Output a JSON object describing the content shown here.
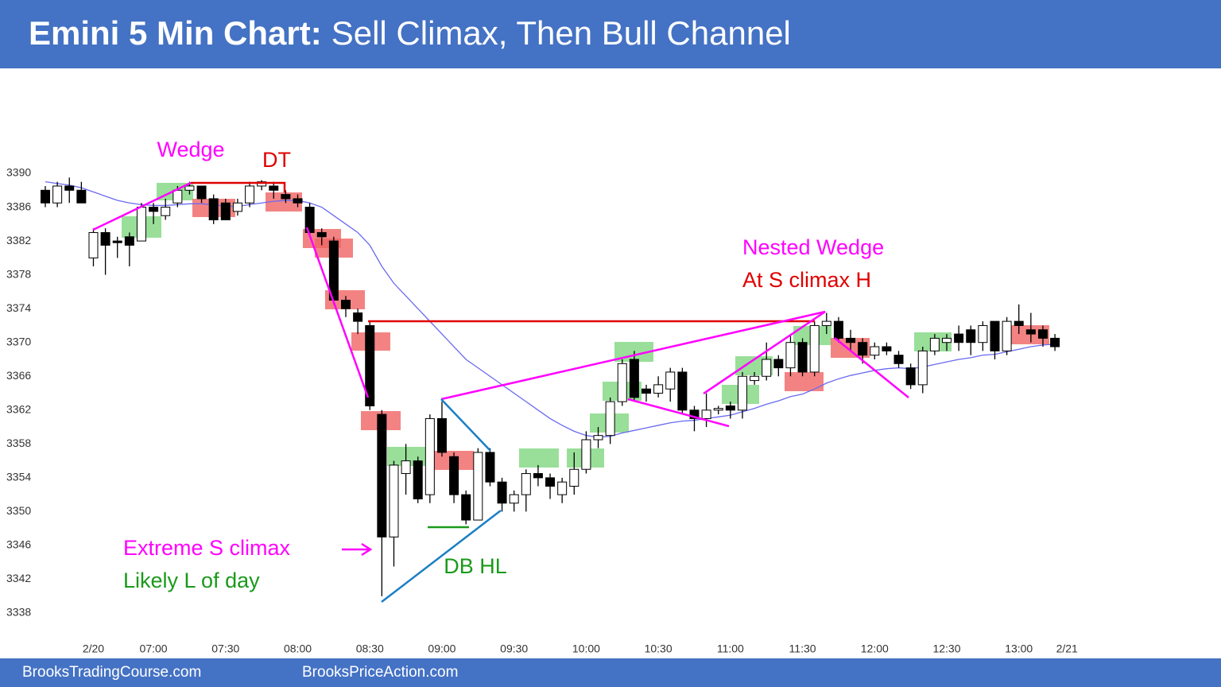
{
  "chart_data": {
    "type": "candlestick",
    "title": {
      "lead": "Emini 5 Min Chart:",
      "text": "Sell Climax, Then Bull Channel"
    },
    "categories": [
      null,
      null,
      null,
      null,
      "2/20",
      null,
      null,
      null,
      null,
      "07:00",
      null,
      null,
      null,
      null,
      null,
      "07:30",
      null,
      null,
      null,
      null,
      null,
      "08:00",
      null,
      null,
      null,
      null,
      null,
      "08:30",
      null,
      null,
      null,
      null,
      null,
      "09:00",
      null,
      null,
      null,
      null,
      null,
      "09:30",
      null,
      null,
      null,
      null,
      null,
      "10:00",
      null,
      null,
      null,
      null,
      null,
      "10:30",
      null,
      null,
      null,
      null,
      null,
      "11:00",
      null,
      null,
      null,
      null,
      null,
      "11:30",
      null,
      null,
      null,
      null,
      null,
      "12:00",
      null,
      null,
      null,
      null,
      null,
      "12:30",
      null,
      null,
      null,
      null,
      null,
      "13:00",
      null,
      null,
      null,
      "2/21"
    ],
    "open": [
      3388,
      3386.5,
      3388.5,
      3388,
      3380,
      3383,
      3382,
      3382.5,
      3382,
      3386,
      3385,
      3386.5,
      3388,
      3388.5,
      3387,
      3386.5,
      3385.5,
      3386.5,
      3388.5,
      3388.5,
      3387.5,
      3387,
      3386,
      3383,
      3382,
      3375,
      3373.5,
      3372,
      3361.5,
      3347,
      3354.5,
      3356,
      3352,
      3361,
      3356.5,
      3352,
      3349,
      3357,
      3353.5,
      3351,
      3352,
      3354.5,
      3354,
      3352,
      3353,
      3355,
      3358.5,
      3359,
      3363,
      3368,
      3364.5,
      3364,
      3364.5,
      3366.5,
      3362,
      3361,
      3362,
      3362.5,
      3362,
      3365.5,
      3366,
      3368,
      3367,
      3370,
      3366.5,
      3372,
      3372.5,
      3370.5,
      3370,
      3368.5,
      3369.5,
      3368.5,
      3367,
      3365,
      3369,
      3370,
      3371,
      3371.5,
      3370,
      3372.5,
      3369,
      3372.5,
      3371.5,
      3371.5,
      3370.5,
      null
    ],
    "high": [
      3388.5,
      3389,
      3389.5,
      3389,
      3383.5,
      3383.5,
      3382.5,
      3383,
      3386.5,
      3386.5,
      3387,
      3388.5,
      3389,
      3388.5,
      3387.5,
      3387,
      3387,
      3389,
      3389.2,
      3389,
      3388,
      3387.5,
      3386.5,
      3383.5,
      3382.5,
      3375.5,
      3374,
      3372.5,
      3362,
      3356,
      3358,
      3356.5,
      3361.5,
      3363,
      3357,
      3352.5,
      3357.5,
      3357.5,
      3354,
      3352.5,
      3355,
      3355.5,
      3354.5,
      3354,
      3357,
      3359.5,
      3360,
      3363.5,
      3368,
      3369,
      3365,
      3366,
      3367,
      3367,
      3362.5,
      3364,
      3362.5,
      3363,
      3366.5,
      3366.5,
      3370,
      3368.5,
      3371,
      3370.5,
      3372.5,
      3373.5,
      3373,
      3371.5,
      3370.5,
      3370,
      3370,
      3369,
      3367.5,
      3369.5,
      3371,
      3371,
      3372,
      3372,
      3372.5,
      3372.5,
      3373,
      3374.5,
      3373.5,
      3372,
      3371,
      null
    ],
    "low": [
      3386,
      3386,
      3386.5,
      3386.5,
      3379,
      3378,
      3380,
      3379,
      3382,
      3384,
      3384.5,
      3386,
      3387.5,
      3386.5,
      3384,
      3384.5,
      3385,
      3386,
      3388,
      3387,
      3386.5,
      3386,
      3382.5,
      3381.5,
      3374.5,
      3373,
      3371,
      3362,
      3340,
      3343.5,
      3352,
      3351,
      3351,
      3356.5,
      3351,
      3348.5,
      3349,
      3353,
      3350,
      3350,
      3350,
      3353,
      3351.5,
      3351,
      3352,
      3354.5,
      3357.5,
      3358,
      3362.5,
      3363,
      3363,
      3363.5,
      3363,
      3361.5,
      3359.5,
      3360,
      3361.5,
      3361,
      3361,
      3365,
      3365.5,
      3366,
      3366,
      3366,
      3366,
      3371,
      3370,
      3369,
      3367.5,
      3368,
      3368.5,
      3367,
      3364.5,
      3364,
      3368.5,
      3369,
      3369,
      3368.5,
      3369,
      3368,
      3368.5,
      3371,
      3370,
      3369.5,
      3369,
      null
    ],
    "close": [
      3386.5,
      3388.5,
      3388,
      3386.5,
      3383,
      3381.5,
      3381.8,
      3381.5,
      3386,
      3385.5,
      3386,
      3388,
      3388.5,
      3387,
      3384.5,
      3384.5,
      3386.5,
      3388.5,
      3389,
      3388,
      3387,
      3386.5,
      3383,
      3382.5,
      3375,
      3374,
      3372.5,
      3362.5,
      3347,
      3355.5,
      3356,
      3351.5,
      3361,
      3357,
      3352,
      3349,
      3357,
      3353.5,
      3351,
      3352,
      3354.5,
      3354,
      3353,
      3353.5,
      3355,
      3358.5,
      3359,
      3363,
      3367.5,
      3363.5,
      3364,
      3365,
      3366.5,
      3362,
      3361,
      3362,
      3362.2,
      3362,
      3366,
      3366,
      3368,
      3367,
      3370,
      3366.5,
      3372,
      3372.5,
      3370.5,
      3370,
      3368.5,
      3369.5,
      3369,
      3367.5,
      3365,
      3369,
      3370.5,
      3370.5,
      3370,
      3370,
      3372,
      3369,
      3372.5,
      3372,
      3371,
      3370.5,
      3369.5,
      null
    ],
    "ma": {
      "color": "#6a6af0",
      "values": [
        3389,
        3388.8,
        3388.6,
        3388.3,
        3387.8,
        3387.3,
        3386.8,
        3386.5,
        3386.3,
        3386.2,
        3386.2,
        3386.3,
        3386.4,
        3386.4,
        3386.3,
        3386.1,
        3386.1,
        3386.3,
        3386.5,
        3386.7,
        3386.8,
        3386.8,
        3386.5,
        3386,
        3385,
        3384,
        3383,
        3381.5,
        3379,
        3377,
        3375.5,
        3374,
        3372.5,
        3371,
        3369.5,
        3368,
        3367,
        3366,
        3365,
        3364,
        3363,
        3362,
        3361,
        3360.2,
        3359.5,
        3359,
        3358.8,
        3358.9,
        3359.3,
        3359.6,
        3359.9,
        3360.2,
        3360.5,
        3360.7,
        3360.8,
        3361,
        3361.2,
        3361.4,
        3361.8,
        3362.2,
        3362.7,
        3363.1,
        3363.6,
        3363.9,
        3364.5,
        3365.2,
        3365.7,
        3366.1,
        3366.4,
        3366.7,
        3366.9,
        3367,
        3366.9,
        3367.1,
        3367.4,
        3367.7,
        3368,
        3368.2,
        3368.5,
        3368.6,
        3368.9,
        3369.2,
        3369.5,
        3369.7,
        3369.8,
        null
      ]
    },
    "up_color": "#ffffff",
    "down_color": "#000000",
    "ylim": [
      3336,
      3396
    ],
    "yticks": [
      3338,
      3342,
      3346,
      3350,
      3354,
      3358,
      3362,
      3366,
      3370,
      3374,
      3378,
      3382,
      3386,
      3390
    ],
    "annotations": [
      "Wedge",
      "DT",
      "Nested Wedge",
      "At S climax H",
      "Extreme S climax",
      "Likely L of day",
      "DB HL"
    ]
  },
  "footer": [
    "BrooksTradingCourse.com",
    "BrooksPriceAction.com"
  ]
}
